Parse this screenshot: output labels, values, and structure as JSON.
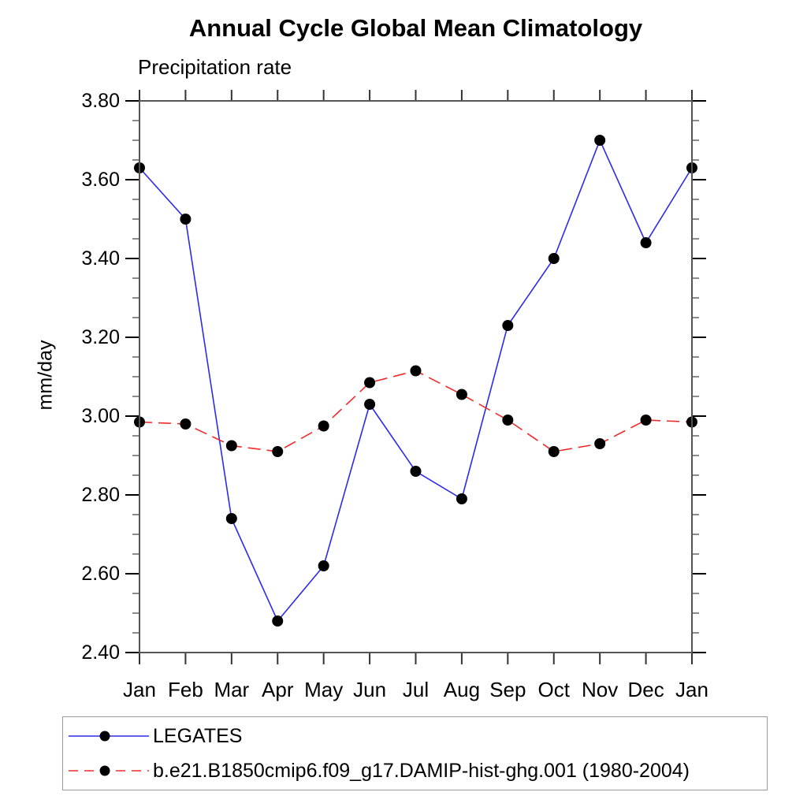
{
  "chart_data": {
    "type": "line",
    "title": "Annual Cycle Global Mean Climatology",
    "subtitle": "Precipitation rate",
    "ylabel": "mm/day",
    "xlabel": "",
    "x_categories": [
      "Jan",
      "Feb",
      "Mar",
      "Apr",
      "May",
      "Jun",
      "Jul",
      "Aug",
      "Sep",
      "Oct",
      "Nov",
      "Dec",
      "Jan"
    ],
    "ylim": [
      2.4,
      3.8
    ],
    "y_major_step": 0.2,
    "y_minor_step": 0.05,
    "y_tick_labels": [
      "2.40",
      "2.60",
      "2.80",
      "3.00",
      "3.20",
      "3.40",
      "3.60",
      "3.80"
    ],
    "grid": false,
    "legend_position": "bottom-left-box",
    "axis_color": "#555555",
    "tick_color": "#000000",
    "marker_color": "#000000",
    "series": [
      {
        "name": "LEGATES",
        "color": "#2b2bee",
        "style": "solid",
        "marker": "circle",
        "values": [
          3.63,
          3.5,
          2.74,
          2.48,
          2.62,
          3.03,
          2.86,
          2.79,
          3.23,
          3.4,
          3.7,
          3.44,
          3.63
        ]
      },
      {
        "name": "b.e21.B1850cmip6.f09_g17.DAMIP-hist-ghg.001 (1980-2004)",
        "color": "#ee2c2c",
        "style": "dashed",
        "marker": "circle",
        "values": [
          2.985,
          2.98,
          2.925,
          2.91,
          2.975,
          3.085,
          3.115,
          3.055,
          2.99,
          2.91,
          2.93,
          2.99,
          2.985
        ]
      }
    ]
  }
}
